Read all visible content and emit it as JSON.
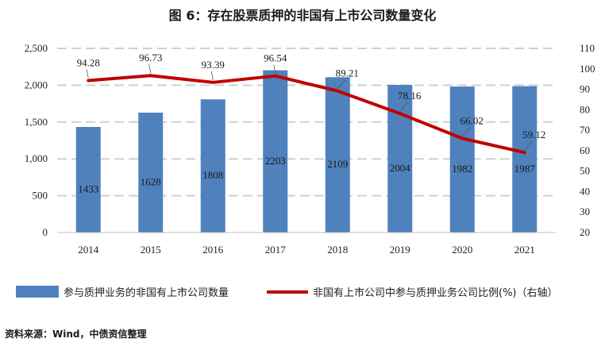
{
  "title": "图 6：存在股票质押的非国有上市公司数量变化",
  "source": "资料来源：Wind，中债资信整理",
  "colors": {
    "bar": "#4f81bd",
    "line": "#c00000",
    "grid": "#d0d0d0"
  },
  "chart_data": {
    "type": "bar",
    "categories": [
      "2014",
      "2015",
      "2016",
      "2017",
      "2018",
      "2019",
      "2020",
      "2021"
    ],
    "series": [
      {
        "name": "参与质押业务的非国有上市公司数量",
        "type": "bar",
        "axis": "left",
        "values": [
          1433,
          1628,
          1808,
          2203,
          2109,
          2004,
          1982,
          1987
        ]
      },
      {
        "name": "非国有上市公司中参与质押业务公司比例(%)（右轴）",
        "type": "line",
        "axis": "right",
        "values": [
          94.28,
          96.73,
          93.39,
          96.54,
          89.21,
          78.16,
          66.02,
          59.12
        ]
      }
    ],
    "left_axis": {
      "min": 0,
      "max": 2500,
      "step": 500,
      "tick_labels": [
        "0",
        "500",
        "1,000",
        "1,500",
        "2,000",
        "2,500"
      ]
    },
    "right_axis": {
      "min": 20,
      "max": 110,
      "step": 10,
      "tick_labels": [
        "20",
        "30",
        "40",
        "50",
        "60",
        "70",
        "80",
        "90",
        "100",
        "110"
      ]
    },
    "bar_labels": [
      "1433",
      "1628",
      "1808",
      "2203",
      "2109",
      "2004",
      "1982",
      "1987"
    ],
    "line_labels": [
      "94.28",
      "96.73",
      "93.39",
      "96.54",
      "89.21",
      "78.16",
      "66.02",
      "59.12"
    ],
    "legend_position": "bottom",
    "grid": true
  }
}
